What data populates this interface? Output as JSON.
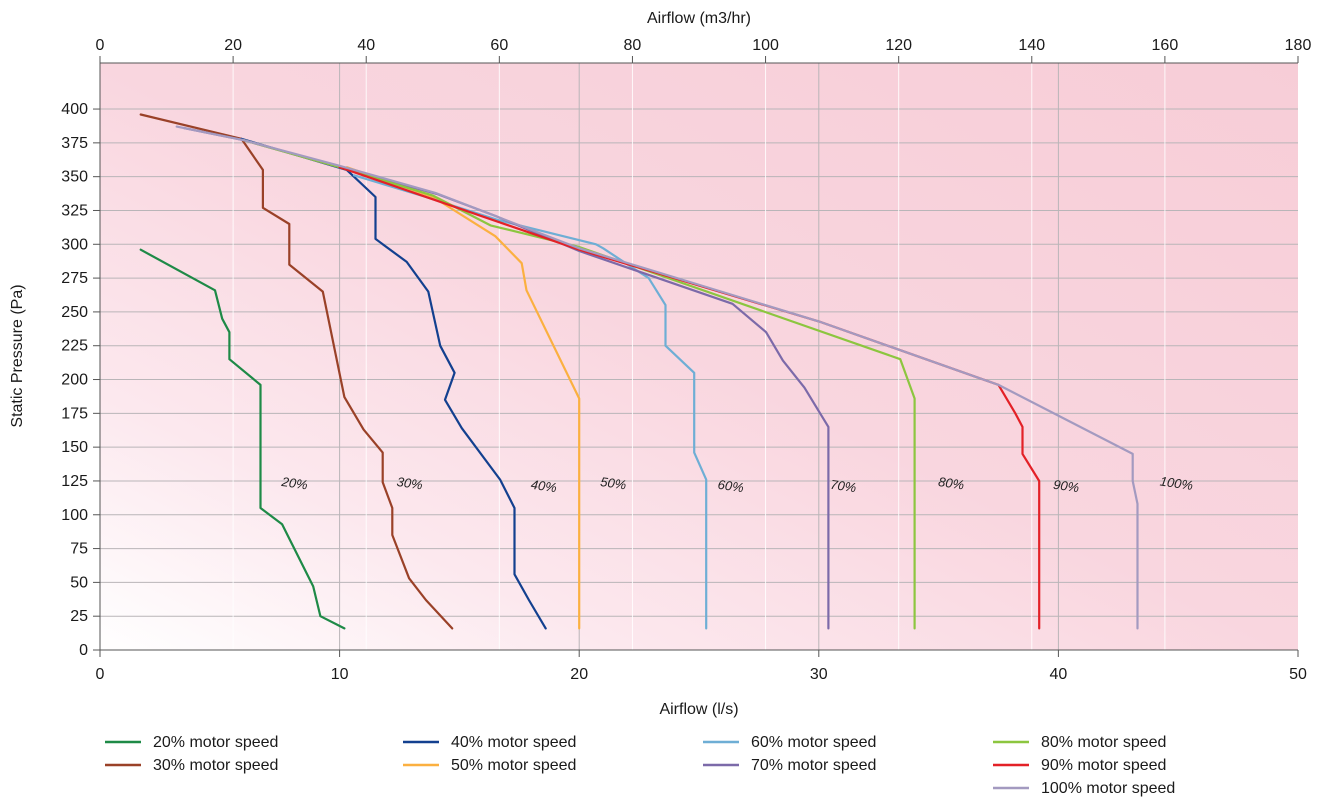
{
  "chart_data": {
    "type": "line",
    "xlabel": "Airflow (l/s)",
    "x2label": "Airflow (m3/hr)",
    "ylabel": "Static Pressure (Pa)",
    "xlim": [
      0,
      50
    ],
    "x2lim": [
      0,
      180
    ],
    "ylim": [
      0,
      420
    ],
    "x_ticks": [
      0,
      10,
      20,
      30,
      40,
      50
    ],
    "x2_ticks": [
      0,
      20,
      40,
      60,
      80,
      100,
      120,
      140,
      160,
      180
    ],
    "y_ticks": [
      0,
      25,
      50,
      75,
      100,
      125,
      150,
      175,
      200,
      225,
      250,
      275,
      300,
      325,
      350,
      375,
      400
    ],
    "grid": true,
    "legend_position": "bottom",
    "background_color": "#f7cdd7",
    "series": [
      {
        "name": "20% motor speed",
        "label": "20%",
        "color": "#1e8a47",
        "x": [
          1.7,
          4.8,
          5.1,
          5.4,
          5.4,
          6.7,
          6.7,
          6.7,
          7.6,
          8.9,
          9.2,
          10.2
        ],
        "y": [
          296,
          266,
          245,
          235,
          215,
          196,
          175,
          105,
          93,
          47,
          25,
          16
        ]
      },
      {
        "name": "30% motor speed",
        "label": "30%",
        "color": "#9a4128",
        "x": [
          1.7,
          5.9,
          6.8,
          6.8,
          7.9,
          7.9,
          9.3,
          10.2,
          11.0,
          11.8,
          11.8,
          12.2,
          12.2,
          12.9,
          13.6,
          14.7
        ],
        "y": [
          396,
          378,
          355,
          327,
          315,
          285,
          265,
          187,
          163,
          146,
          124,
          105,
          85,
          53,
          37,
          16
        ]
      },
      {
        "name": "40% motor speed",
        "label": "40%",
        "color": "#13408f",
        "x": [
          5.9,
          10.3,
          11.5,
          11.5,
          12.8,
          13.7,
          14.2,
          14.8,
          14.4,
          15.1,
          16.7,
          17.3,
          17.3,
          17.9,
          18.6
        ],
        "y": [
          378,
          355,
          335,
          304,
          287,
          265,
          225,
          205,
          185,
          164,
          126,
          105,
          56,
          37,
          16
        ]
      },
      {
        "name": "50% motor speed",
        "label": "50%",
        "color": "#fbb040",
        "x": [
          10.3,
          13.9,
          16.5,
          17.6,
          17.8,
          20.0,
          20.0
        ],
        "y": [
          357,
          335,
          306,
          286,
          266,
          186,
          16
        ]
      },
      {
        "name": "60% motor speed",
        "label": "60%",
        "color": "#6eaed5",
        "x": [
          10.6,
          13.6,
          16.6,
          20.7,
          21.0,
          22.2,
          22.9,
          23.6,
          23.6,
          24.8,
          24.8,
          25.3,
          25.3
        ],
        "y": [
          351,
          335,
          318,
          300,
          297,
          283,
          275,
          255,
          225,
          205,
          146,
          126,
          16
        ]
      },
      {
        "name": "70% motor speed",
        "label": "70%",
        "color": "#7c6aa9",
        "x": [
          3.5,
          6.0,
          10.0,
          14.1,
          16.5,
          20.0,
          26.4,
          27.8,
          28.5,
          29.4,
          30.4,
          30.4
        ],
        "y": [
          386,
          377,
          357,
          337,
          321,
          295,
          256,
          235,
          214,
          194,
          165,
          16
        ]
      },
      {
        "name": "80% motor speed",
        "label": "80%",
        "color": "#8cc63f",
        "x": [
          6.0,
          10.0,
          13.9,
          16.3,
          20.0,
          33.4,
          34.0,
          34.0
        ],
        "y": [
          377,
          357,
          336,
          314,
          298,
          215,
          186,
          16
        ]
      },
      {
        "name": "90% motor speed",
        "label": "90%",
        "color": "#e32127",
        "x": [
          10.0,
          20.0,
          30.0,
          37.5,
          38.2,
          38.5,
          38.5,
          39.2,
          39.2
        ],
        "y": [
          357,
          296,
          243,
          196,
          175,
          165,
          145,
          125,
          16
        ]
      },
      {
        "name": "100% motor speed",
        "label": "100%",
        "color": "#a39ac0",
        "x": [
          3.2,
          6.0,
          10.0,
          14.0,
          20.0,
          30.0,
          37.5,
          43.1,
          43.1,
          43.3,
          43.3
        ],
        "y": [
          387,
          377,
          358,
          338,
          297,
          243,
          196,
          145,
          125,
          108,
          16
        ]
      }
    ],
    "curve_labels": [
      {
        "text": "20%",
        "x": 8.1,
        "y": 120
      },
      {
        "text": "30%",
        "x": 12.9,
        "y": 120
      },
      {
        "text": "40%",
        "x": 18.5,
        "y": 118
      },
      {
        "text": "50%",
        "x": 21.4,
        "y": 120
      },
      {
        "text": "60%",
        "x": 26.3,
        "y": 118
      },
      {
        "text": "70%",
        "x": 31.0,
        "y": 118
      },
      {
        "text": "80%",
        "x": 35.5,
        "y": 120
      },
      {
        "text": "90%",
        "x": 40.3,
        "y": 118
      },
      {
        "text": "100%",
        "x": 44.9,
        "y": 120
      }
    ]
  }
}
